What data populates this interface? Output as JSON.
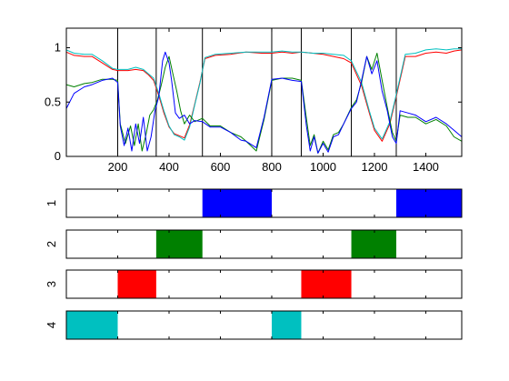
{
  "chart_data": [
    {
      "type": "line",
      "title": "",
      "xlabel": "",
      "ylabel": "",
      "xlim": [
        0,
        1540
      ],
      "ylim": [
        0,
        1.18
      ],
      "x_ticks": [
        200,
        400,
        600,
        800,
        1000,
        1200,
        1400
      ],
      "y_ticks": [
        0,
        0.5,
        1
      ],
      "y_tick_labels": [
        "0",
        "0.5",
        "1"
      ],
      "vertical_lines": [
        200,
        350,
        530,
        800,
        915,
        1110,
        1285
      ],
      "grid": false,
      "series": [
        {
          "color": "#ff0000",
          "x": [
            0,
            30,
            70,
            100,
            140,
            180,
            200,
            240,
            270,
            300,
            320,
            340,
            360,
            380,
            400,
            420,
            440,
            460,
            480,
            500,
            520,
            540,
            580,
            640,
            700,
            760,
            800,
            840,
            880,
            915,
            960,
            1000,
            1040,
            1080,
            1110,
            1150,
            1180,
            1200,
            1230,
            1260,
            1285,
            1320,
            1360,
            1400,
            1440,
            1480,
            1510,
            1540
          ],
          "values": [
            0.96,
            0.93,
            0.92,
            0.92,
            0.86,
            0.8,
            0.79,
            0.79,
            0.8,
            0.79,
            0.75,
            0.7,
            0.56,
            0.4,
            0.27,
            0.21,
            0.19,
            0.17,
            0.29,
            0.48,
            0.68,
            0.9,
            0.93,
            0.94,
            0.96,
            0.95,
            0.95,
            0.96,
            0.95,
            0.96,
            0.95,
            0.94,
            0.92,
            0.9,
            0.86,
            0.65,
            0.4,
            0.24,
            0.14,
            0.3,
            0.55,
            0.92,
            0.92,
            0.95,
            0.96,
            0.95,
            0.97,
            0.98
          ]
        },
        {
          "color": "#00c0c0",
          "x": [
            0,
            30,
            70,
            100,
            140,
            180,
            200,
            240,
            270,
            300,
            320,
            340,
            360,
            380,
            400,
            420,
            440,
            460,
            480,
            500,
            520,
            540,
            580,
            640,
            700,
            760,
            800,
            840,
            880,
            915,
            960,
            1000,
            1040,
            1080,
            1110,
            1150,
            1180,
            1200,
            1230,
            1260,
            1285,
            1320,
            1360,
            1400,
            1440,
            1480,
            1510,
            1540
          ],
          "values": [
            0.98,
            0.95,
            0.94,
            0.94,
            0.88,
            0.81,
            0.8,
            0.8,
            0.82,
            0.8,
            0.76,
            0.72,
            0.58,
            0.42,
            0.28,
            0.2,
            0.18,
            0.15,
            0.27,
            0.47,
            0.67,
            0.91,
            0.94,
            0.95,
            0.96,
            0.96,
            0.96,
            0.97,
            0.96,
            0.96,
            0.95,
            0.95,
            0.94,
            0.93,
            0.88,
            0.68,
            0.42,
            0.26,
            0.16,
            0.32,
            0.57,
            0.94,
            0.95,
            0.98,
            0.99,
            0.98,
            0.99,
            0.99
          ]
        },
        {
          "color": "#008000",
          "x": [
            0,
            30,
            70,
            100,
            140,
            180,
            200,
            210,
            230,
            250,
            265,
            280,
            295,
            310,
            325,
            340,
            355,
            370,
            385,
            400,
            415,
            430,
            445,
            460,
            480,
            500,
            530,
            560,
            600,
            640,
            680,
            700,
            740,
            770,
            800,
            840,
            880,
            915,
            935,
            950,
            965,
            980,
            1000,
            1020,
            1040,
            1060,
            1080,
            1110,
            1130,
            1150,
            1170,
            1190,
            1210,
            1230,
            1250,
            1270,
            1285,
            1300,
            1330,
            1360,
            1400,
            1440,
            1480,
            1510,
            1540
          ],
          "values": [
            0.66,
            0.64,
            0.67,
            0.68,
            0.71,
            0.71,
            0.7,
            0.3,
            0.12,
            0.28,
            0.1,
            0.3,
            0.05,
            0.2,
            0.38,
            0.43,
            0.52,
            0.66,
            0.82,
            0.92,
            0.76,
            0.6,
            0.42,
            0.3,
            0.38,
            0.32,
            0.35,
            0.28,
            0.28,
            0.22,
            0.18,
            0.14,
            0.05,
            0.34,
            0.7,
            0.72,
            0.72,
            0.7,
            0.35,
            0.1,
            0.2,
            0.03,
            0.14,
            0.06,
            0.2,
            0.22,
            0.3,
            0.45,
            0.52,
            0.68,
            0.92,
            0.8,
            0.95,
            0.7,
            0.45,
            0.22,
            0.14,
            0.38,
            0.36,
            0.36,
            0.3,
            0.34,
            0.28,
            0.18,
            0.14
          ]
        },
        {
          "color": "#0000ff",
          "x": [
            0,
            30,
            70,
            100,
            140,
            180,
            200,
            210,
            225,
            240,
            255,
            270,
            285,
            300,
            315,
            330,
            345,
            360,
            375,
            385,
            400,
            410,
            425,
            440,
            460,
            480,
            500,
            530,
            560,
            600,
            640,
            680,
            700,
            740,
            770,
            800,
            840,
            880,
            915,
            935,
            950,
            965,
            980,
            1000,
            1020,
            1040,
            1060,
            1080,
            1110,
            1130,
            1150,
            1170,
            1190,
            1210,
            1230,
            1250,
            1270,
            1285,
            1300,
            1330,
            1360,
            1400,
            1440,
            1480,
            1510,
            1540
          ],
          "values": [
            0.44,
            0.58,
            0.64,
            0.66,
            0.7,
            0.72,
            0.68,
            0.28,
            0.1,
            0.26,
            0.05,
            0.3,
            0.12,
            0.36,
            0.05,
            0.18,
            0.42,
            0.55,
            0.88,
            0.96,
            0.86,
            0.7,
            0.4,
            0.35,
            0.38,
            0.3,
            0.33,
            0.32,
            0.27,
            0.27,
            0.22,
            0.15,
            0.14,
            0.08,
            0.36,
            0.71,
            0.72,
            0.7,
            0.69,
            0.28,
            0.05,
            0.18,
            0.03,
            0.12,
            0.04,
            0.18,
            0.2,
            0.3,
            0.44,
            0.5,
            0.7,
            0.92,
            0.76,
            0.88,
            0.6,
            0.42,
            0.18,
            0.12,
            0.42,
            0.4,
            0.38,
            0.32,
            0.36,
            0.3,
            0.24,
            0.18
          ]
        }
      ]
    },
    {
      "type": "bar",
      "ytick_label": "1",
      "xlim": [
        0,
        1540
      ],
      "color": "#0000ff",
      "segments": [
        [
          530,
          800
        ],
        [
          1285,
          1540
        ]
      ]
    },
    {
      "type": "bar",
      "ytick_label": "2",
      "xlim": [
        0,
        1540
      ],
      "color": "#008000",
      "segments": [
        [
          350,
          530
        ],
        [
          1110,
          1285
        ]
      ]
    },
    {
      "type": "bar",
      "ytick_label": "3",
      "xlim": [
        0,
        1540
      ],
      "color": "#ff0000",
      "segments": [
        [
          200,
          350
        ],
        [
          915,
          1110
        ]
      ]
    },
    {
      "type": "bar",
      "ytick_label": "4",
      "xlim": [
        0,
        1540
      ],
      "color": "#00c0c0",
      "segments": [
        [
          0,
          200
        ],
        [
          800,
          915
        ]
      ]
    }
  ]
}
